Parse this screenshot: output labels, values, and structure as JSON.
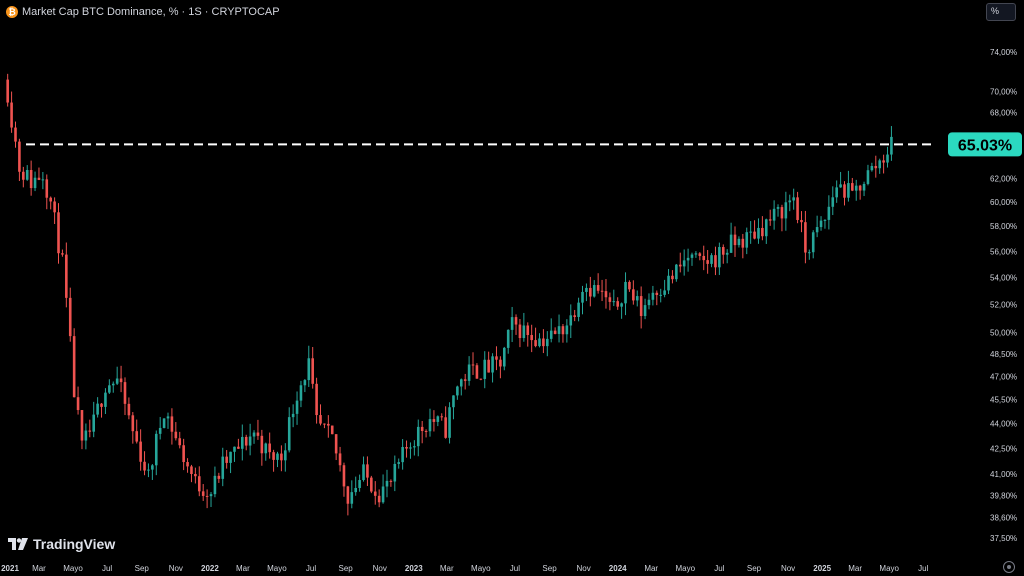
{
  "header": {
    "title": "Market Cap BTC Dominance, % · 1S · CRYPTOCAP",
    "icon": "bitcoin-icon",
    "scale_button": "%"
  },
  "footer": {
    "logo": "TradingView",
    "settings_icon": "gear-icon"
  },
  "colors": {
    "up": "#26a69a",
    "down": "#ef5350",
    "background": "#000000",
    "label_bg": "#2bd9c0"
  },
  "chart_data": {
    "type": "candlestick",
    "symbol": "Market Cap BTC Dominance, %",
    "timeframe": "1S",
    "exchange": "CRYPTOCAP",
    "y_scale": "log",
    "ylim": [
      37.5,
      74.0
    ],
    "y_ticks": [
      "74,00%",
      "70,00%",
      "68,00%",
      "62,00%",
      "60,00%",
      "58,00%",
      "56,00%",
      "54,00%",
      "52,00%",
      "50,00%",
      "48,50%",
      "47,00%",
      "45,50%",
      "44,00%",
      "42,50%",
      "41,00%",
      "39,80%",
      "38,60%",
      "37,50%"
    ],
    "x_start": "2021-01-04",
    "x_end": "2025-07-15",
    "x_ticks": [
      {
        "date": "2021-01-01",
        "label": "2021"
      },
      {
        "date": "2021-03-01",
        "label": "Mar"
      },
      {
        "date": "2021-05-01",
        "label": "Mayo"
      },
      {
        "date": "2021-07-01",
        "label": "Jul"
      },
      {
        "date": "2021-09-01",
        "label": "Sep"
      },
      {
        "date": "2021-11-01",
        "label": "Nov"
      },
      {
        "date": "2022-01-01",
        "label": "2022"
      },
      {
        "date": "2022-03-01",
        "label": "Mar"
      },
      {
        "date": "2022-05-01",
        "label": "Mayo"
      },
      {
        "date": "2022-07-01",
        "label": "Jul"
      },
      {
        "date": "2022-09-01",
        "label": "Sep"
      },
      {
        "date": "2022-11-01",
        "label": "Nov"
      },
      {
        "date": "2023-01-01",
        "label": "2023"
      },
      {
        "date": "2023-03-01",
        "label": "Mar"
      },
      {
        "date": "2023-05-01",
        "label": "Mayo"
      },
      {
        "date": "2023-07-01",
        "label": "Jul"
      },
      {
        "date": "2023-09-01",
        "label": "Sep"
      },
      {
        "date": "2023-11-01",
        "label": "Nov"
      },
      {
        "date": "2024-01-01",
        "label": "2024"
      },
      {
        "date": "2024-03-01",
        "label": "Mar"
      },
      {
        "date": "2024-05-01",
        "label": "Mayo"
      },
      {
        "date": "2024-07-01",
        "label": "Jul"
      },
      {
        "date": "2024-09-01",
        "label": "Sep"
      },
      {
        "date": "2024-11-01",
        "label": "Nov"
      },
      {
        "date": "2025-01-01",
        "label": "2025"
      },
      {
        "date": "2025-03-01",
        "label": "Mar"
      },
      {
        "date": "2025-05-01",
        "label": "Mayo"
      },
      {
        "date": "2025-07-01",
        "label": "Jul"
      }
    ],
    "last_value": 65.03,
    "last_value_label": "65.03%",
    "reference_line": {
      "value": 65.03,
      "style": "dashed"
    },
    "close_keypoints": [
      [
        "2021-01-04",
        70.0
      ],
      [
        "2021-01-11",
        67.5
      ],
      [
        "2021-01-25",
        63.0
      ],
      [
        "2021-02-15",
        61.7
      ],
      [
        "2021-03-08",
        62.5
      ],
      [
        "2021-03-22",
        60.0
      ],
      [
        "2021-04-12",
        55.0
      ],
      [
        "2021-05-03",
        46.0
      ],
      [
        "2021-05-17",
        42.5
      ],
      [
        "2021-06-07",
        44.0
      ],
      [
        "2021-06-28",
        46.5
      ],
      [
        "2021-07-19",
        46.8
      ],
      [
        "2021-08-16",
        43.5
      ],
      [
        "2021-09-13",
        40.8
      ],
      [
        "2021-10-11",
        45.0
      ],
      [
        "2021-11-08",
        42.5
      ],
      [
        "2021-12-06",
        40.5
      ],
      [
        "2022-01-03",
        40.0
      ],
      [
        "2022-01-24",
        41.5
      ],
      [
        "2022-02-21",
        42.5
      ],
      [
        "2022-03-21",
        43.5
      ],
      [
        "2022-04-18",
        42.0
      ],
      [
        "2022-05-09",
        42.0
      ],
      [
        "2022-06-06",
        46.0
      ],
      [
        "2022-06-27",
        47.8
      ],
      [
        "2022-07-11",
        44.0
      ],
      [
        "2022-08-08",
        43.0
      ],
      [
        "2022-09-05",
        39.8
      ],
      [
        "2022-10-03",
        41.0
      ],
      [
        "2022-10-31",
        40.0
      ],
      [
        "2022-11-21",
        40.5
      ],
      [
        "2022-12-19",
        42.5
      ],
      [
        "2023-01-09",
        43.5
      ],
      [
        "2023-01-30",
        44.3
      ],
      [
        "2023-02-27",
        43.7
      ],
      [
        "2023-03-20",
        46.5
      ],
      [
        "2023-04-10",
        47.3
      ],
      [
        "2023-05-08",
        47.5
      ],
      [
        "2023-06-05",
        47.8
      ],
      [
        "2023-06-26",
        50.5
      ],
      [
        "2023-07-24",
        50.0
      ],
      [
        "2023-08-14",
        49.5
      ],
      [
        "2023-09-11",
        49.8
      ],
      [
        "2023-10-09",
        51.0
      ],
      [
        "2023-10-30",
        53.5
      ],
      [
        "2023-11-27",
        53.0
      ],
      [
        "2023-12-25",
        51.5
      ],
      [
        "2024-01-15",
        53.5
      ],
      [
        "2024-02-12",
        51.5
      ],
      [
        "2024-03-04",
        53.0
      ],
      [
        "2024-04-01",
        53.7
      ],
      [
        "2024-05-06",
        55.5
      ],
      [
        "2024-05-27",
        55.0
      ],
      [
        "2024-06-24",
        55.5
      ],
      [
        "2024-07-22",
        56.5
      ],
      [
        "2024-08-19",
        57.0
      ],
      [
        "2024-09-16",
        58.0
      ],
      [
        "2024-10-14",
        59.0
      ],
      [
        "2024-11-11",
        60.5
      ],
      [
        "2024-12-02",
        56.0
      ],
      [
        "2024-12-16",
        57.0
      ],
      [
        "2025-01-06",
        58.5
      ],
      [
        "2025-01-27",
        61.5
      ],
      [
        "2025-02-24",
        60.5
      ],
      [
        "2025-03-17",
        62.0
      ],
      [
        "2025-04-14",
        63.5
      ],
      [
        "2025-05-05",
        65.03
      ]
    ]
  }
}
